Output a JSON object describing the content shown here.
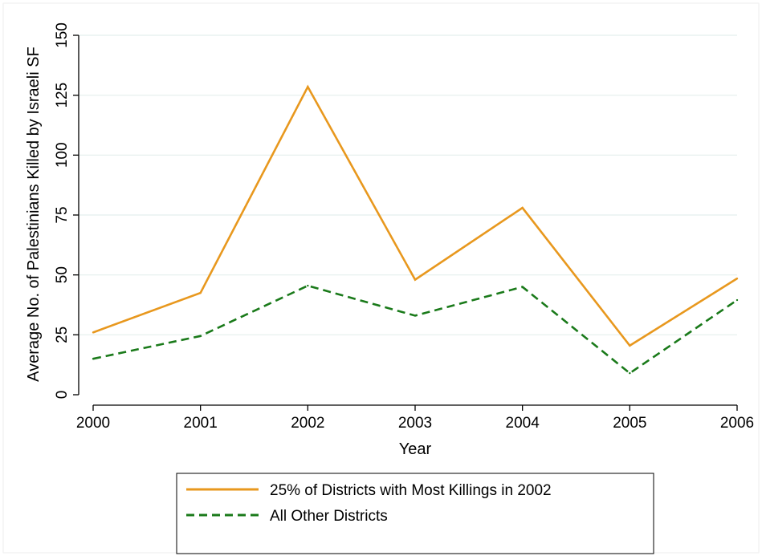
{
  "chart_data": {
    "type": "line",
    "x": [
      2000,
      2001,
      2002,
      2003,
      2004,
      2005,
      2006
    ],
    "xlabel": "Year",
    "ylabel": "Average No. of Palestinians Killed by Israeli SF",
    "xlim": [
      2000,
      2006
    ],
    "ylim": [
      0,
      150
    ],
    "yticks": [
      0,
      25,
      50,
      75,
      100,
      125,
      150
    ],
    "grid": true,
    "legend_position": "bottom",
    "series": [
      {
        "name": "25% of Districts with Most Killings in 2002",
        "values": [
          26,
          42.5,
          128.5,
          48,
          78,
          20.5,
          48.5
        ],
        "color": "#e8981e",
        "dash": "solid"
      },
      {
        "name": "All Other Districts",
        "values": [
          15,
          24.5,
          45.5,
          33,
          45,
          9,
          39.5
        ],
        "color": "#1a7a1a",
        "dash": "dashed"
      }
    ]
  }
}
